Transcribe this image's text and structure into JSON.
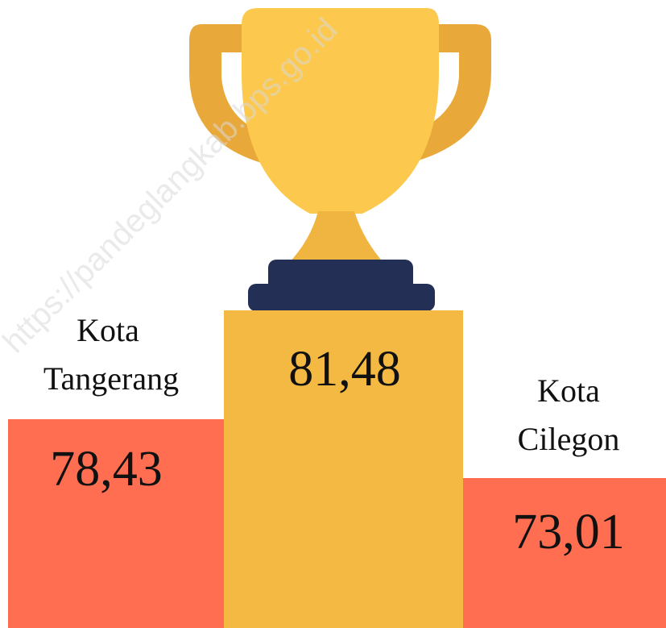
{
  "podium": [
    {
      "label_lines": [
        "Kota",
        "Tangerang"
      ],
      "value": "78,43"
    },
    {
      "value": "81,48"
    },
    {
      "label_lines": [
        "Kota",
        "Cilegon"
      ],
      "value": "73,01"
    }
  ],
  "watermark": "https://pandeglangkab.bps.go.id"
}
